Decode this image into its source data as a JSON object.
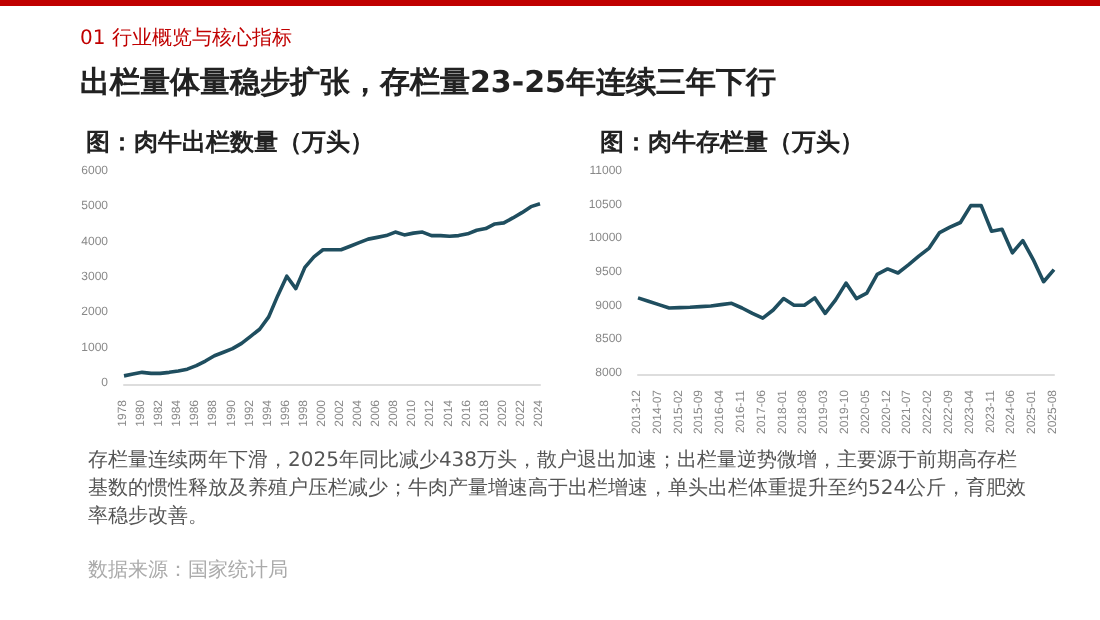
{
  "chart_data": [
    {
      "type": "line",
      "title": "图：肉牛出栏数量（万头）",
      "categories": [
        "1978",
        null,
        "1980",
        null,
        "1982",
        null,
        "1984",
        null,
        "1986",
        null,
        "1988",
        null,
        "1990",
        null,
        "1992",
        null,
        "1994",
        null,
        "1996",
        null,
        "1998",
        null,
        "2000",
        null,
        "2002",
        null,
        "2004",
        null,
        "2006",
        null,
        "2008",
        null,
        "2010",
        null,
        "2012",
        null,
        "2014",
        null,
        "2016",
        null,
        "2018",
        null,
        "2020",
        null,
        "2022",
        null,
        "2024"
      ],
      "series": [
        {
          "color": "#1f4e5f",
          "values": [
            230,
            280,
            330,
            300,
            300,
            330,
            370,
            420,
            520,
            650,
            800,
            900,
            1000,
            1150,
            1350,
            1550,
            1900,
            2500,
            3050,
            2700,
            3300,
            3600,
            3800,
            3800,
            3800,
            3900,
            4000,
            4100,
            4150,
            4200,
            4300,
            4220,
            4270,
            4300,
            4200,
            4200,
            4180,
            4200,
            4250,
            4350,
            4400,
            4530,
            4560,
            4700,
            4850,
            5020,
            5100
          ]
        }
      ],
      "ylim": [
        0,
        6000
      ],
      "yticks": [
        0,
        1000,
        2000,
        3000,
        4000,
        5000,
        6000
      ],
      "annotations": [
        "01 行业概览与核心指标",
        "出栏量体量稳步扩张，存栏量23-25年连续三年下行",
        "存栏量连续两年下滑，2025年同比减少438万头，散户退出加速；出栏量逆势微增，主要源于前期高存栏基数的惯性释放及养殖户压栏减少；牛肉产量增速高于出栏增速，单头出栏体重提升至约524公斤，育肥效率稳步改善。",
        "数据来源：国家统计局"
      ]
    },
    {
      "type": "line",
      "title": "图：肉牛存栏量（万头）",
      "categories": [
        "2013-12",
        null,
        "2014-07",
        null,
        "2015-02",
        null,
        "2015-09",
        null,
        "2016-04",
        null,
        "2016-11",
        null,
        "2017-06",
        null,
        "2018-01",
        null,
        "2018-08",
        null,
        "2019-03",
        null,
        "2019-10",
        null,
        "2020-05",
        null,
        "2020-12",
        null,
        "2021-07",
        null,
        "2022-02",
        null,
        "2022-09",
        null,
        "2023-04",
        null,
        "2023-11",
        null,
        "2024-06",
        null,
        "2025-01",
        null,
        "2025-08"
      ],
      "series": [
        {
          "color": "#1f4e5f",
          "values": [
            9130,
            9080,
            9030,
            8980,
            8985,
            8990,
            9000,
            9010,
            9030,
            9050,
            8980,
            8900,
            8830,
            8950,
            9120,
            9020,
            9020,
            9130,
            8900,
            9100,
            9350,
            9120,
            9200,
            9480,
            9560,
            9500,
            9620,
            9750,
            9870,
            10100,
            10180,
            10250,
            10500,
            10500,
            10120,
            10150,
            9800,
            9980,
            9700,
            9370,
            9550
          ]
        }
      ],
      "ylim": [
        8000,
        11000
      ],
      "yticks": [
        8000,
        8500,
        9000,
        9500,
        10000,
        10500,
        11000
      ]
    }
  ]
}
